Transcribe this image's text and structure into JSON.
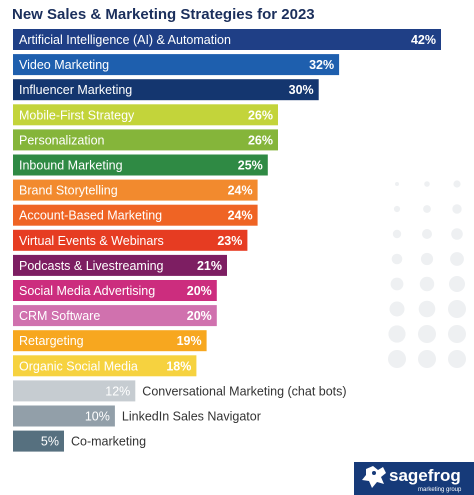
{
  "brand": {
    "name": "sagefrog",
    "tagline": "marketing group",
    "background": "#163a79"
  },
  "chart_data": {
    "type": "bar",
    "orientation": "horizontal",
    "title": "New Sales & Marketing Strategies for 2023",
    "value_suffix": "%",
    "xlim": [
      0,
      42
    ],
    "grid": false,
    "legend": "none",
    "categories": [
      "Artificial Intelligence (AI) & Automation",
      "Video Marketing",
      "Influencer Marketing",
      "Mobile-First Strategy",
      "Personalization",
      "Inbound Marketing",
      "Brand Storytelling",
      "Account-Based Marketing",
      "Virtual Events & Webinars",
      "Podcasts & Livestreaming",
      "Social Media Advertising",
      "CRM Software",
      "Retargeting",
      "Organic Social Media",
      "Conversational Marketing (chat bots)",
      "LinkedIn Sales Navigator",
      "Co-marketing"
    ],
    "values": [
      42,
      32,
      30,
      26,
      26,
      25,
      24,
      24,
      23,
      21,
      20,
      20,
      19,
      18,
      12,
      10,
      5
    ],
    "colors": [
      "#1f3f86",
      "#1e5fae",
      "#14366f",
      "#c3d43a",
      "#85b53a",
      "#2f8a44",
      "#f28a2e",
      "#ef6424",
      "#e63c22",
      "#7d1e62",
      "#cc2d7e",
      "#d071ae",
      "#f7a71f",
      "#f6d23f",
      "#c6ccd1",
      "#929fa9",
      "#56707f"
    ],
    "labels_inside": [
      true,
      true,
      true,
      true,
      true,
      true,
      true,
      true,
      true,
      true,
      true,
      true,
      true,
      true,
      false,
      false,
      false
    ]
  }
}
